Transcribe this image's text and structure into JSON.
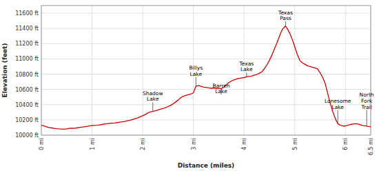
{
  "chart_data": {
    "type": "line",
    "xlabel": "Distance (miles)",
    "ylabel": "Elevation (feet)",
    "xlim": [
      0,
      6.5
    ],
    "ylim": [
      10000,
      11700
    ],
    "xticks": [
      {
        "value": 0,
        "label": "0 mi"
      },
      {
        "value": 1,
        "label": "1 mi"
      },
      {
        "value": 2,
        "label": "2 mi"
      },
      {
        "value": 3,
        "label": "3 mi"
      },
      {
        "value": 4,
        "label": "4 mi"
      },
      {
        "value": 5,
        "label": "5 mi"
      },
      {
        "value": 6,
        "label": "6 mi"
      },
      {
        "value": 6.5,
        "label": "6.5 mi"
      }
    ],
    "yticks": [
      {
        "value": 10000,
        "label": "10000 ft"
      },
      {
        "value": 10200,
        "label": "10200 ft"
      },
      {
        "value": 10400,
        "label": "10400 ft"
      },
      {
        "value": 10600,
        "label": "10600 ft"
      },
      {
        "value": 10800,
        "label": "10800 ft"
      },
      {
        "value": 11000,
        "label": "11000 ft"
      },
      {
        "value": 11200,
        "label": "11200 ft"
      },
      {
        "value": 11400,
        "label": "11400 ft"
      },
      {
        "value": 11600,
        "label": "11600 ft"
      }
    ],
    "grid": true,
    "x": [
      0.0,
      0.05,
      0.1,
      0.15,
      0.2,
      0.25,
      0.3,
      0.35,
      0.4,
      0.45,
      0.5,
      0.55,
      0.6,
      0.65,
      0.7,
      0.75,
      0.8,
      0.85,
      0.9,
      0.95,
      1.0,
      1.05,
      1.1,
      1.15,
      1.2,
      1.25,
      1.3,
      1.35,
      1.4,
      1.45,
      1.5,
      1.55,
      1.6,
      1.65,
      1.7,
      1.75,
      1.8,
      1.85,
      1.9,
      1.95,
      2.0,
      2.05,
      2.1,
      2.15,
      2.2,
      2.25,
      2.3,
      2.35,
      2.4,
      2.45,
      2.5,
      2.55,
      2.6,
      2.65,
      2.7,
      2.75,
      2.8,
      2.85,
      2.9,
      2.95,
      3.0,
      3.05,
      3.1,
      3.15,
      3.2,
      3.25,
      3.3,
      3.35,
      3.4,
      3.45,
      3.5,
      3.55,
      3.6,
      3.65,
      3.7,
      3.75,
      3.8,
      3.85,
      3.9,
      3.95,
      4.0,
      4.05,
      4.1,
      4.15,
      4.2,
      4.25,
      4.3,
      4.35,
      4.4,
      4.45,
      4.5,
      4.55,
      4.6,
      4.65,
      4.7,
      4.75,
      4.8,
      4.82,
      4.85,
      4.9,
      4.95,
      5.0,
      5.05,
      5.1,
      5.15,
      5.2,
      5.25,
      5.3,
      5.35,
      5.4,
      5.45,
      5.5,
      5.55,
      5.6,
      5.65,
      5.7,
      5.75,
      5.8,
      5.85,
      5.9,
      5.95,
      6.0,
      6.05,
      6.1,
      6.15,
      6.2,
      6.25,
      6.3,
      6.35,
      6.4,
      6.45,
      6.5
    ],
    "series": [
      {
        "color": "#cc0000",
        "values": [
          10130,
          10120,
          10110,
          10100,
          10095,
          10090,
          10085,
          10082,
          10080,
          10078,
          10082,
          10090,
          10092,
          10090,
          10095,
          10100,
          10105,
          10110,
          10115,
          10120,
          10125,
          10128,
          10130,
          10135,
          10140,
          10145,
          10150,
          10155,
          10158,
          10160,
          10165,
          10170,
          10175,
          10180,
          10188,
          10195,
          10205,
          10215,
          10225,
          10240,
          10255,
          10270,
          10290,
          10305,
          10310,
          10320,
          10330,
          10340,
          10350,
          10360,
          10375,
          10390,
          10410,
          10435,
          10460,
          10490,
          10510,
          10520,
          10530,
          10540,
          10555,
          10640,
          10650,
          10640,
          10630,
          10625,
          10620,
          10615,
          10618,
          10615,
          10612,
          10608,
          10630,
          10660,
          10690,
          10710,
          10725,
          10735,
          10745,
          10750,
          10755,
          10765,
          10770,
          10775,
          10785,
          10795,
          10810,
          10830,
          10870,
          10920,
          10980,
          11050,
          11130,
          11210,
          11300,
          11380,
          11420,
          11430,
          11400,
          11340,
          11260,
          11160,
          11060,
          10980,
          10950,
          10930,
          10910,
          10900,
          10890,
          10880,
          10870,
          10820,
          10760,
          10680,
          10550,
          10420,
          10310,
          10220,
          10150,
          10130,
          10120,
          10120,
          10130,
          10140,
          10145,
          10150,
          10145,
          10135,
          10125,
          10120,
          10115,
          10110
        ]
      }
    ],
    "annotations": [
      {
        "text": "Shadow\nLake",
        "x": 2.2,
        "y": 10310,
        "label_y": 10430
      },
      {
        "text": "Billys\nLake",
        "x": 3.05,
        "y": 10640,
        "label_y": 10760
      },
      {
        "text": "Barren\nLake",
        "x": 3.55,
        "y": 10608,
        "label_y": 10530
      },
      {
        "text": "Texas\nLake",
        "x": 4.05,
        "y": 10765,
        "label_y": 10820
      },
      {
        "text": "Texas\nPass",
        "x": 4.82,
        "y": 11430,
        "label_y": 11490
      },
      {
        "text": "Lonesome\nLake",
        "x": 5.85,
        "y": 10150,
        "label_y": 10330
      },
      {
        "text": "North\nFork\nTrail",
        "x": 6.42,
        "y": 10120,
        "label_y": 10330
      }
    ]
  }
}
